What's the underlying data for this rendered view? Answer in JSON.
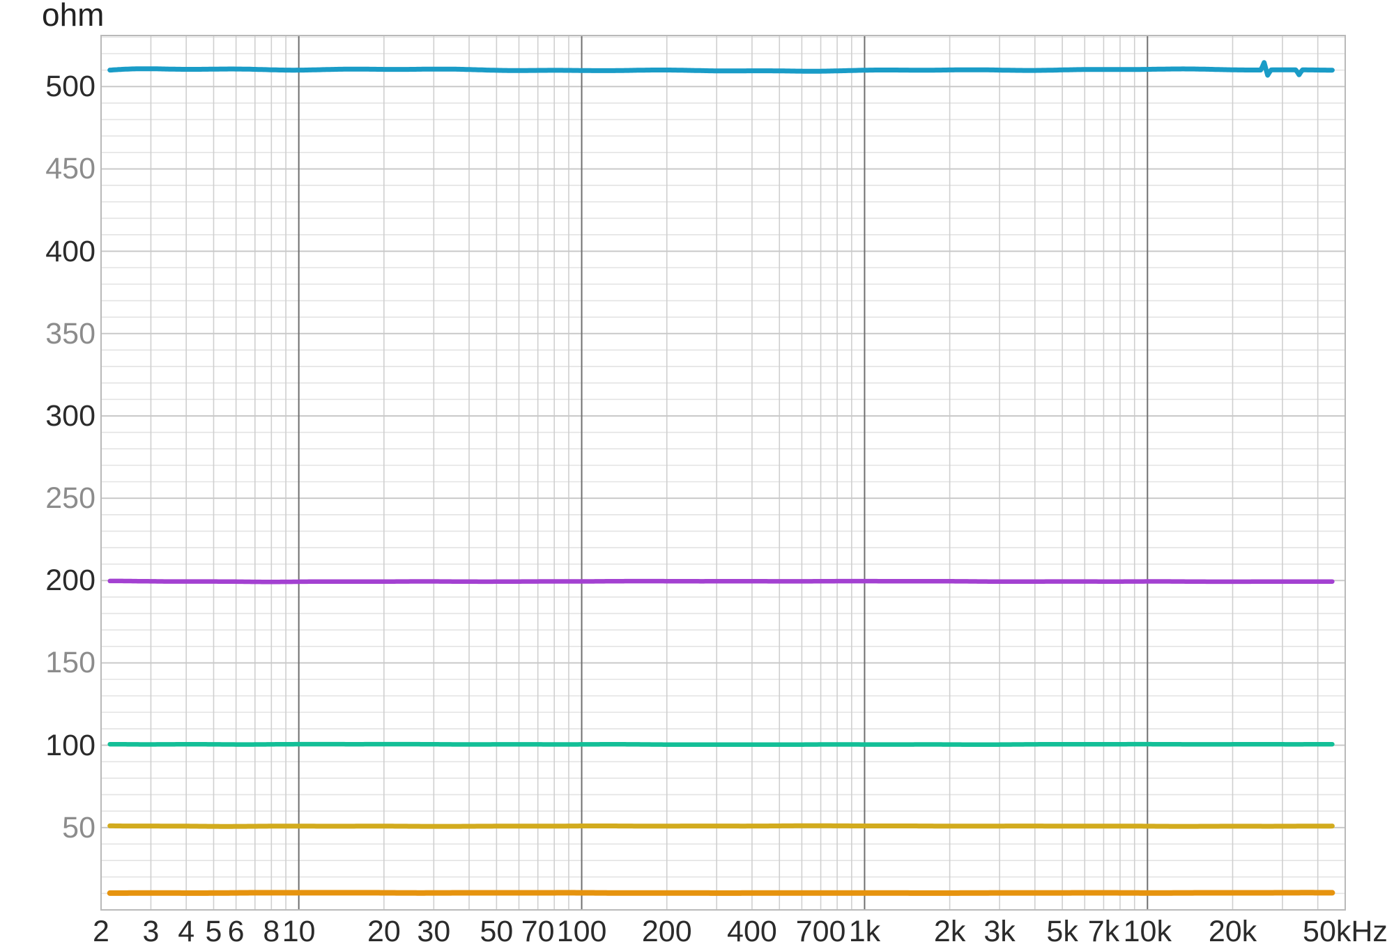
{
  "header": {
    "y_unit_label": "ohm"
  },
  "chart_data": {
    "type": "line",
    "title": "",
    "ylabel": "ohm",
    "xlabel": "kHz",
    "x_scale": "log",
    "grid": true,
    "legend_position": "none",
    "x_range": [
      2,
      50000
    ],
    "x_trace_range": [
      2.15,
      45000
    ],
    "y_range": [
      0,
      531
    ],
    "y_major_step": 50,
    "y_minor_step": 10,
    "decade_lines": [
      10,
      100,
      1000,
      10000
    ],
    "x_ticks": [
      {
        "value": 2,
        "label": "2"
      },
      {
        "value": 3,
        "label": "3"
      },
      {
        "value": 4,
        "label": "4"
      },
      {
        "value": 5,
        "label": "5"
      },
      {
        "value": 6,
        "label": "6"
      },
      {
        "value": 8,
        "label": "8"
      },
      {
        "value": 10,
        "label": "10"
      },
      {
        "value": 20,
        "label": "20"
      },
      {
        "value": 30,
        "label": "30"
      },
      {
        "value": 50,
        "label": "50"
      },
      {
        "value": 70,
        "label": "70"
      },
      {
        "value": 100,
        "label": "100"
      },
      {
        "value": 200,
        "label": "200"
      },
      {
        "value": 400,
        "label": "400"
      },
      {
        "value": 700,
        "label": "700"
      },
      {
        "value": 1000,
        "label": "1k"
      },
      {
        "value": 2000,
        "label": "2k"
      },
      {
        "value": 3000,
        "label": "3k"
      },
      {
        "value": 5000,
        "label": "5k"
      },
      {
        "value": 7000,
        "label": "7k"
      },
      {
        "value": 10000,
        "label": "10k"
      },
      {
        "value": 20000,
        "label": "20k"
      },
      {
        "value": 50000,
        "label": "50kHz"
      }
    ],
    "y_ticks": [
      {
        "value": 50,
        "label": "50",
        "shade": "gray"
      },
      {
        "value": 100,
        "label": "100",
        "shade": "dark"
      },
      {
        "value": 150,
        "label": "150",
        "shade": "gray"
      },
      {
        "value": 200,
        "label": "200",
        "shade": "dark"
      },
      {
        "value": 250,
        "label": "250",
        "shade": "gray"
      },
      {
        "value": 300,
        "label": "300",
        "shade": "dark"
      },
      {
        "value": 350,
        "label": "350",
        "shade": "gray"
      },
      {
        "value": 400,
        "label": "400",
        "shade": "dark"
      },
      {
        "value": 450,
        "label": "450",
        "shade": "gray"
      },
      {
        "value": 500,
        "label": "500",
        "shade": "dark"
      }
    ],
    "series": [
      {
        "name": "510 ohm",
        "ohm": 510.0,
        "color": "#1a9cc7",
        "width": 7,
        "noise_ohm": 0.75,
        "artifacts": [
          {
            "freq": 26000,
            "delta_ohm": 4.5
          },
          {
            "freq": 26700,
            "delta_ohm": -3.2
          },
          {
            "freq": 34500,
            "delta_ohm": -3.0
          }
        ]
      },
      {
        "name": "200 ohm",
        "ohm": 199.5,
        "color": "#a341d1",
        "width": 6.5,
        "noise_ohm": 0.22,
        "artifacts": []
      },
      {
        "name": "100 ohm",
        "ohm": 100.5,
        "color": "#13bf97",
        "width": 6.5,
        "noise_ohm": 0.18,
        "artifacts": []
      },
      {
        "name": "50 ohm",
        "ohm": 50.9,
        "color": "#d2ab1e",
        "width": 7,
        "noise_ohm": 0.18,
        "artifacts": []
      },
      {
        "name": "10 ohm",
        "ohm": 10.3,
        "color": "#e6930e",
        "width": 8,
        "noise_ohm": 0.14,
        "artifacts": []
      }
    ],
    "colors": {
      "background": "#ffffff",
      "grid_minor_h": "#e3e3e3",
      "grid_major_h": "#c9c9c9",
      "grid_minor_v": "#cfcfcf",
      "grid_decade_v": "#6f6f6f",
      "frame": "#b9b9b9",
      "tick_dark": "#2b2b2b",
      "tick_gray": "#8c8c8c",
      "title_color": "#222222"
    }
  }
}
